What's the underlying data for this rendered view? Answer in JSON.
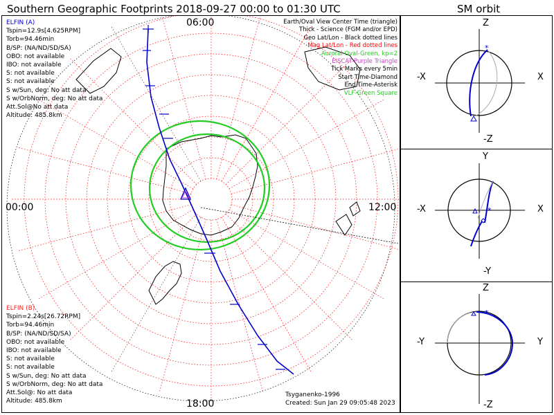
{
  "title": "Southern Geographic Footprints 2018-09-27 00:00 to 01:30 UTC",
  "orbit_title": "SM orbit",
  "map": {
    "time_labels": {
      "top": "06:00",
      "left": "00:00",
      "right": "12:00",
      "bottom": "18:00"
    },
    "legend": [
      {
        "text": "Earth/Oval View Center Time (triangle)",
        "color": "#000000"
      },
      {
        "text": "Thick - Science (FGM and/or EPD)",
        "color": "#000000"
      },
      {
        "text": "Geo Lat/Lon - Black dotted lines",
        "color": "#000000"
      },
      {
        "text": "Mag Lat/Lon - Red dotted lines",
        "color": "#ff0000"
      },
      {
        "text": "Auroral Oval-Green, kp=2",
        "color": "#22cc22"
      },
      {
        "text": "EISCAT-Purple Triangle",
        "color": "#cc44cc"
      },
      {
        "text": "Tick Marks every 5min",
        "color": "#000000"
      },
      {
        "text": "Start Time-Diamond",
        "color": "#000000"
      },
      {
        "text": "End Time-Asterisk",
        "color": "#000000"
      },
      {
        "text": "VLF-Green Square",
        "color": "#22cc22"
      }
    ],
    "elfin_a": {
      "name": "ELFIN (A)",
      "color": "#0000cc",
      "lines": [
        "Tspin=12.9s[4.625RPM]",
        "Torb=94.46min",
        "B/SP: (NA/ND/SD/SA)",
        "OBO: not available",
        "IBO: not available",
        "S: not available",
        "S: not available",
        "S w/Sun, deg: No att data",
        "S w/OrbNorm, deg: No att data",
        "Att.Sol@No att data",
        "Altitude: 485.8km"
      ]
    },
    "elfin_b": {
      "name": "ELFIN (B)",
      "color": "#ff2222",
      "lines": [
        "Tspin=2.24s[26.72RPM]",
        "Torb=94.46min",
        "B/SP: (NA/ND/SD/SA)",
        "OBO: not available",
        "IBO: not available",
        "S: not available",
        "S: not available",
        "S w/Sun, deg: No att data",
        "S w/OrbNorm, deg: No att data",
        "Att.Sol@: No att data",
        "Altitude: 485.8km"
      ]
    },
    "model": "Tsyganenko-1996",
    "created": "Created: Sun Jan 29 09:05:48 2023"
  },
  "orbit_panels": [
    {
      "top": "Z",
      "bottom": "-Z",
      "left": "-X",
      "right": "X"
    },
    {
      "top": "Y",
      "bottom": "-Y",
      "left": "-X",
      "right": "X"
    },
    {
      "top": "Z",
      "bottom": "-Z",
      "left": "-Y",
      "right": "Y"
    }
  ],
  "colors": {
    "track": "#0000cc",
    "oval": "#22cc22",
    "maggrid": "#ff0000",
    "geogrid": "#000000"
  }
}
